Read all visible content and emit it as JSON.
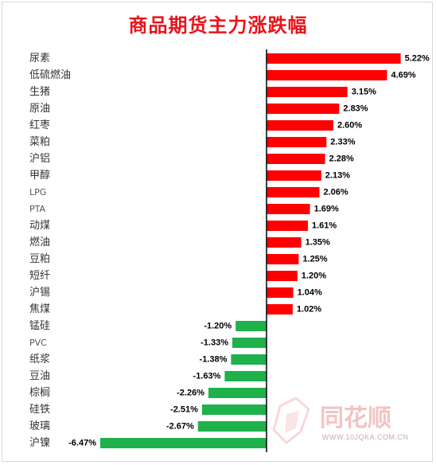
{
  "chart_data": {
    "type": "bar",
    "orientation": "horizontal",
    "title": "商品期货主力涨跌幅",
    "categories": [
      "尿素",
      "低硫燃油",
      "生猪",
      "原油",
      "红枣",
      "菜粕",
      "沪铝",
      "甲醇",
      "LPG",
      "PTA",
      "动煤",
      "燃油",
      "豆粕",
      "短纤",
      "沪锡",
      "焦煤",
      "锰硅",
      "PVC",
      "纸浆",
      "豆油",
      "棕榈",
      "硅铁",
      "玻璃",
      "沪镍"
    ],
    "values": [
      5.22,
      4.69,
      3.15,
      2.83,
      2.6,
      2.33,
      2.28,
      2.13,
      2.06,
      1.69,
      1.61,
      1.35,
      1.25,
      1.2,
      1.04,
      1.02,
      -1.2,
      -1.33,
      -1.38,
      -1.63,
      -2.26,
      -2.51,
      -2.67,
      -6.47
    ],
    "value_labels": [
      "5.22%",
      "4.69%",
      "3.15%",
      "2.83%",
      "2.60%",
      "2.33%",
      "2.28%",
      "2.13%",
      "2.06%",
      "1.69%",
      "1.61%",
      "1.35%",
      "1.25%",
      "1.20%",
      "1.04%",
      "1.02%",
      "-1.20%",
      "-1.33%",
      "-1.38%",
      "-1.63%",
      "-2.26%",
      "-2.51%",
      "-2.67%",
      "-6.47%"
    ],
    "positive_color": "#ff0000",
    "negative_color": "#1fb14b",
    "axis_color": "#000000",
    "grid": false,
    "legend": "none"
  },
  "watermark": {
    "brand": "同花顺",
    "url": "WWW.10JQKA.COM.CN"
  }
}
